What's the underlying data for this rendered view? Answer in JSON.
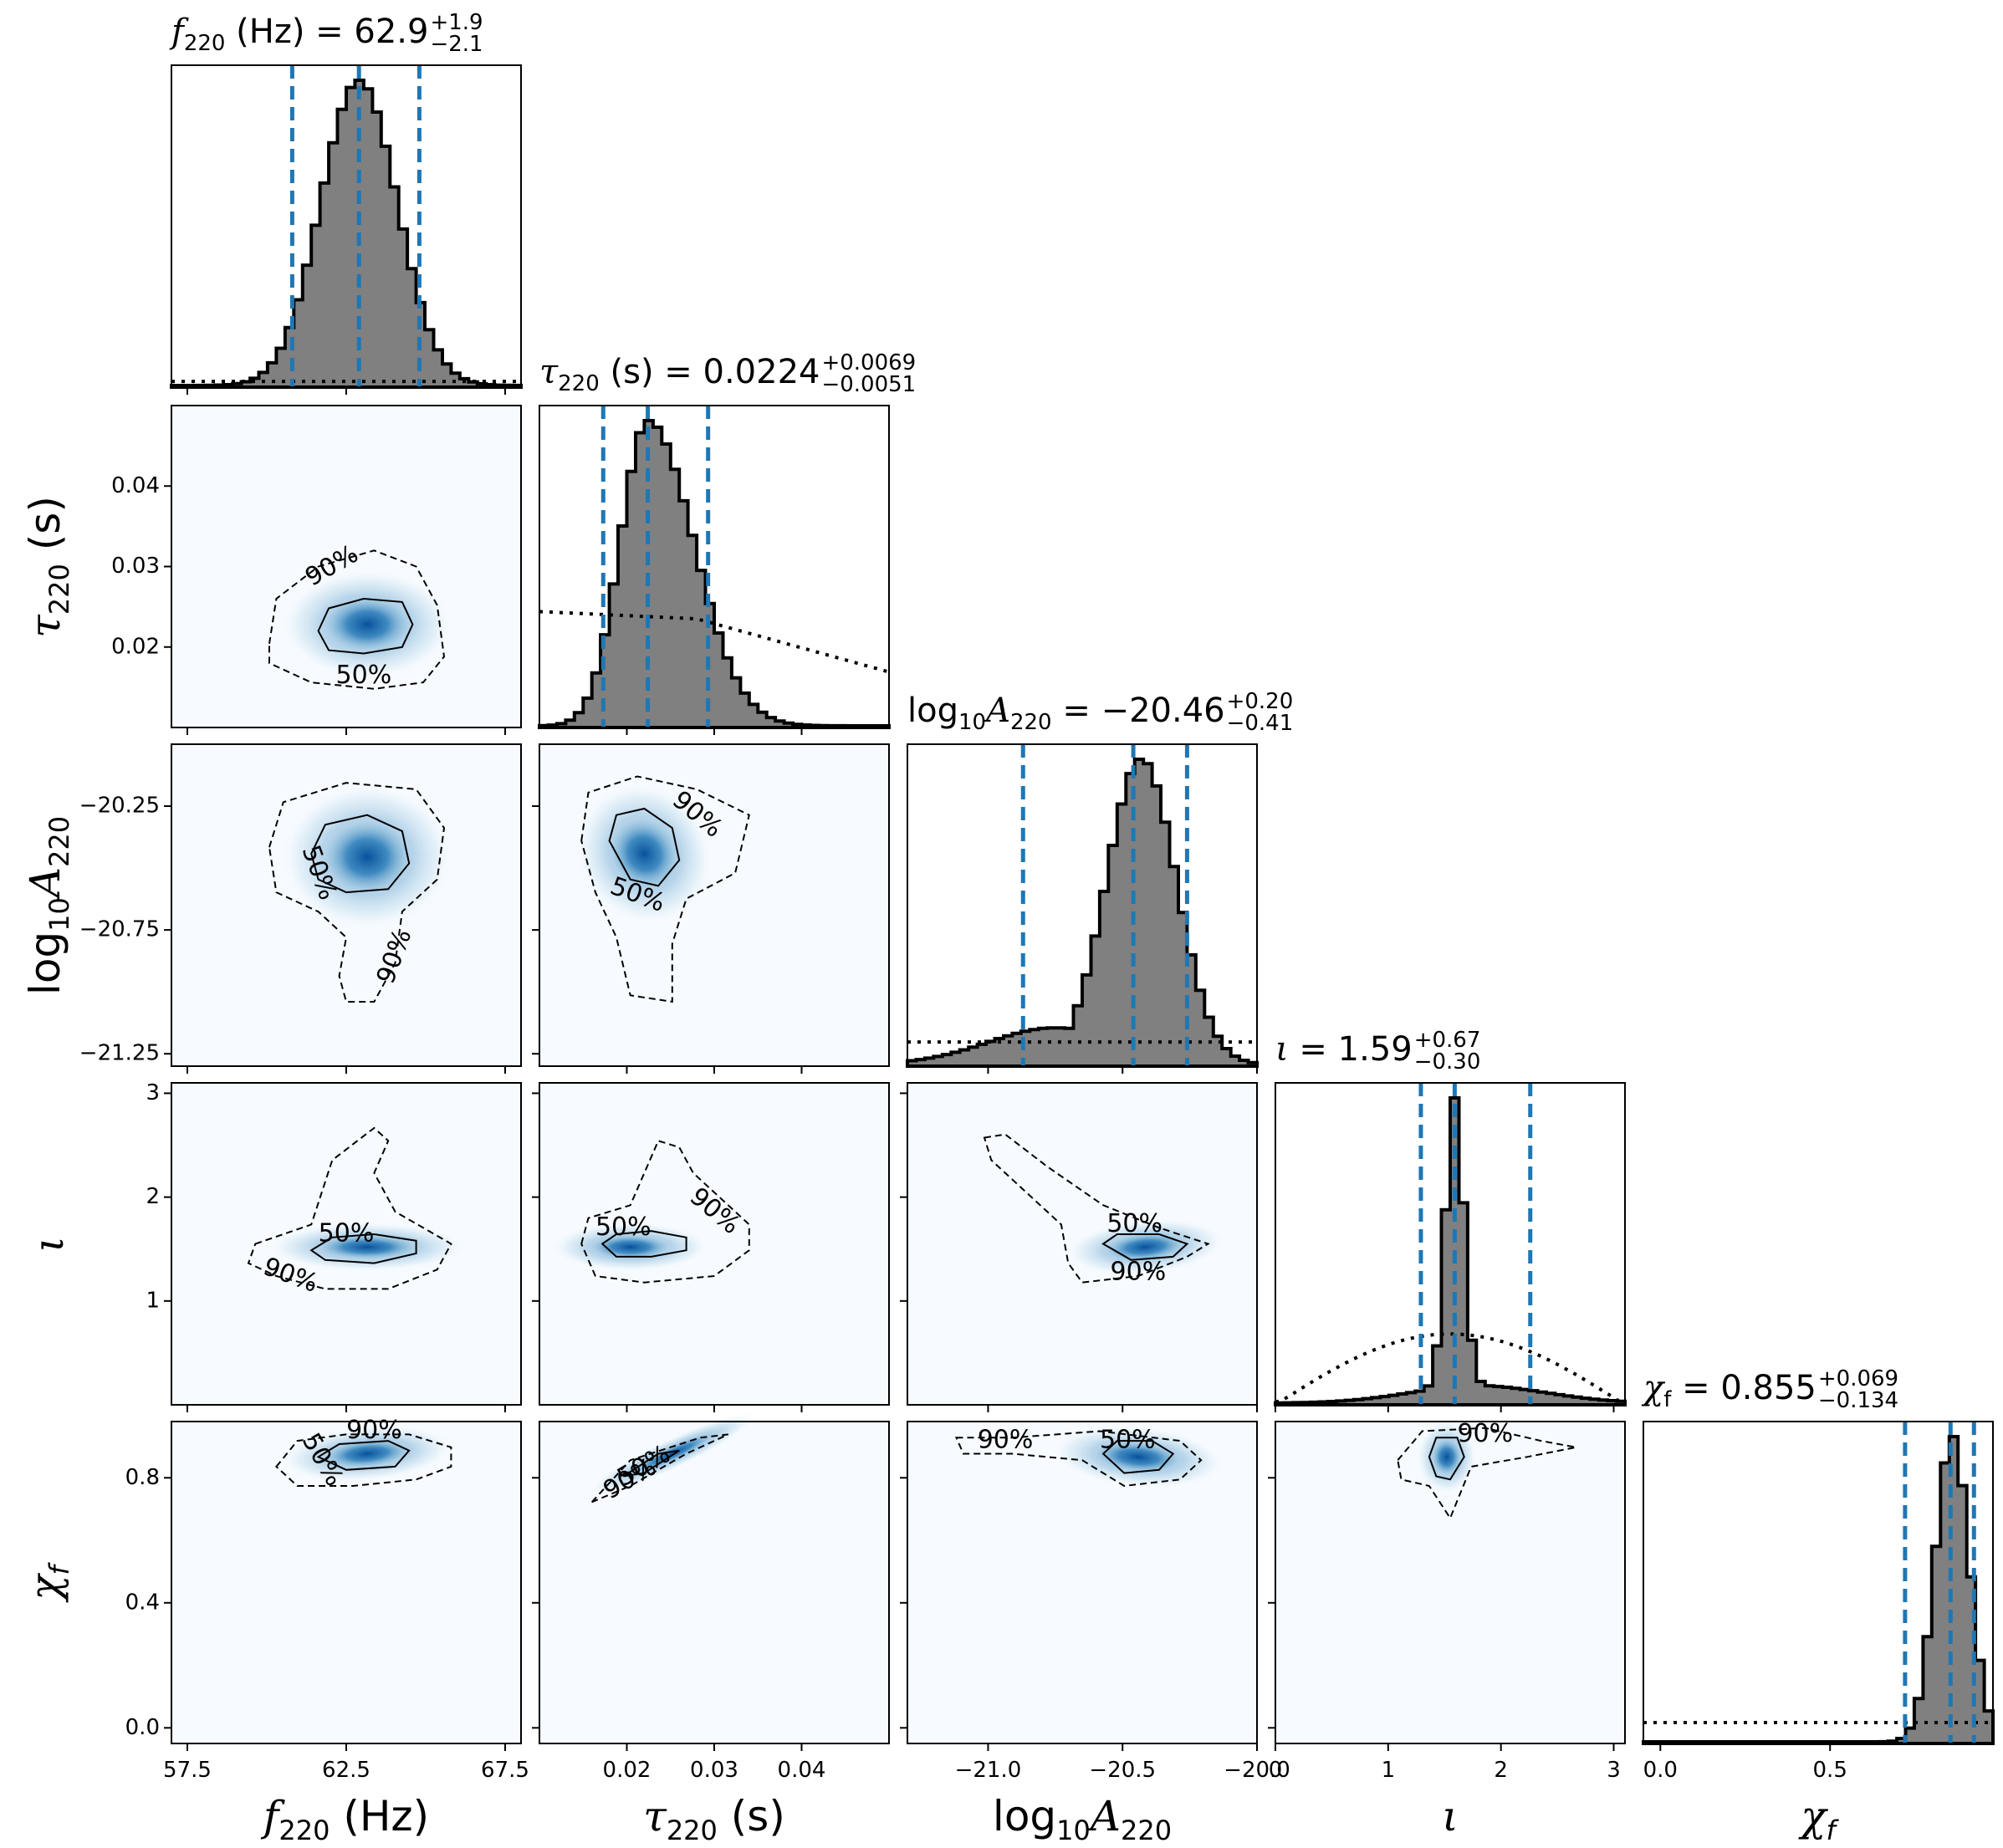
{
  "chart_data": {
    "type": "corner",
    "parameters": [
      {
        "key": "f220",
        "label_math": "f_220 (Hz)",
        "range": [
          57,
          68
        ],
        "ticks": [
          57.5,
          62.5,
          67.5
        ],
        "tick_labels": [
          "57.5",
          "62.5",
          "67.5"
        ],
        "title_prefix": "f",
        "title_sub": "220",
        "title_unit": " (Hz) = ",
        "median": "62.9",
        "err_plus": "+1.9",
        "err_minus": "−2.1",
        "median_val": 62.9,
        "lo_val": 60.8,
        "hi_val": 64.8,
        "hist_mu": 62.9,
        "hist_sigma": 1.2,
        "prior": "flat"
      },
      {
        "key": "tau220",
        "label_math": "tau_220 (s)",
        "range": [
          0.01,
          0.05
        ],
        "ticks": [
          0.02,
          0.03,
          0.04
        ],
        "tick_labels": [
          "0.02",
          "0.03",
          "0.04"
        ],
        "title_prefix": "τ",
        "title_sub": "220",
        "title_unit": " (s) = ",
        "median": "0.0224",
        "err_plus": "+0.0069",
        "err_minus": "−0.0051",
        "median_val": 0.0224,
        "lo_val": 0.0173,
        "hi_val": 0.0293,
        "hist_mu": 0.0224,
        "hist_sigma": 0.0035,
        "prior": "tau"
      },
      {
        "key": "logA220",
        "label_math": "log10 A_220",
        "range": [
          -21.3,
          -20.0
        ],
        "ticks": [
          -21.0,
          -20.5,
          -20.0
        ],
        "tick_labels": [
          "−21.0",
          "−20.5",
          "−20.0"
        ],
        "y_ticks": [
          -20.25,
          -20.75,
          -21.25
        ],
        "y_tick_labels": [
          "−20.25",
          "−20.75",
          "−21.25"
        ],
        "title_prefix": "log",
        "title_sub": "10",
        "title_unit": "A",
        "median": "−20.46",
        "err_plus": "+0.20",
        "err_minus": "−0.41",
        "median_val": -20.46,
        "lo_val": -20.87,
        "hi_val": -20.26,
        "hist_mu": -20.43,
        "hist_sigma": 0.13,
        "prior": "flat"
      },
      {
        "key": "iota",
        "label_math": "iota",
        "range": [
          0,
          3.1
        ],
        "ticks": [
          1,
          2,
          3
        ],
        "tick_labels": [
          "1",
          "2",
          "3"
        ],
        "x_ticks": [
          0,
          1,
          2,
          3
        ],
        "x_tick_labels": [
          "0",
          "1",
          "2",
          "3"
        ],
        "title_prefix": "ι",
        "title_sub": "",
        "title_unit": " = ",
        "median": "1.59",
        "err_plus": "+0.67",
        "err_minus": "−0.30",
        "median_val": 1.59,
        "lo_val": 1.29,
        "hi_val": 2.26,
        "hist_mu": 1.59,
        "hist_sigma": 0.08,
        "prior": "sine"
      },
      {
        "key": "chif",
        "label_math": "chi_f",
        "range": [
          -0.05,
          0.98
        ],
        "ticks": [
          0.0,
          0.4,
          0.8
        ],
        "tick_labels": [
          "0.0",
          "0.4",
          "0.8"
        ],
        "x_ticks": [
          0.0,
          0.5
        ],
        "x_tick_labels": [
          "0.0",
          "0.5"
        ],
        "title_prefix": "χ",
        "title_sub": "f",
        "title_unit": " = ",
        "median": "0.855",
        "err_plus": "+0.069",
        "err_minus": "−0.134",
        "median_val": 0.855,
        "lo_val": 0.721,
        "hi_val": 0.924,
        "hist_mu": 0.86,
        "hist_sigma": 0.05,
        "prior": "flat"
      }
    ],
    "axis_labels": {
      "f220": {
        "main": "f",
        "sub": "220",
        "tail": " (Hz)"
      },
      "tau220": {
        "main": "τ",
        "sub": "220",
        "tail": " (s)"
      },
      "logA220": {
        "main": "log",
        "sub": "10",
        "tail": "A",
        "sub2": "220"
      },
      "iota": {
        "main": "ι",
        "sub": "",
        "tail": ""
      },
      "chif": {
        "main": "χ",
        "sub": "f",
        "tail": ""
      }
    },
    "contour_levels": [
      "50%",
      "90%"
    ],
    "colors": {
      "hist_fill": "#808080",
      "hist_edge": "#000000",
      "median_lines": "#1f77b4",
      "density": "#08519c",
      "density_bg": "#f7fbff"
    }
  }
}
